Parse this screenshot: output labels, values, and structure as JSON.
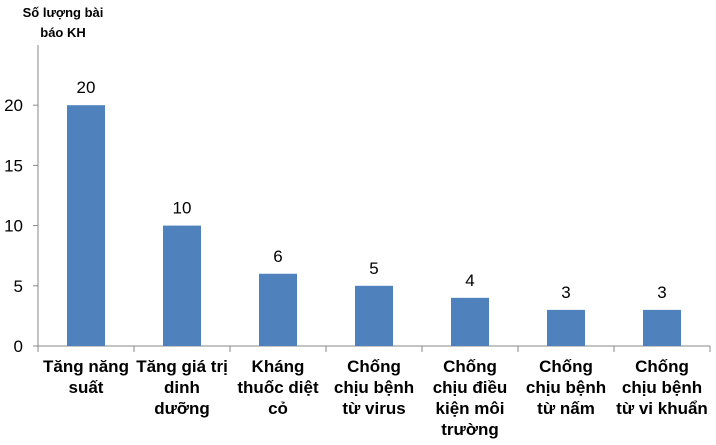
{
  "chart_data": {
    "type": "bar",
    "y_label": "Số lượng bài báo KH",
    "categories": [
      "Tăng năng suất",
      "Tăng giá trị dinh dưỡng",
      "Kháng thuốc diệt cỏ",
      "Chống chịu bệnh từ virus",
      "Chống chịu điều kiện môi trường",
      "Chống chịu bệnh từ nấm",
      "Chống chịu bệnh từ vi khuẩn"
    ],
    "values": [
      20,
      10,
      6,
      5,
      4,
      3,
      3
    ],
    "color": "#4f81bd",
    "ylim": [
      0,
      25
    ],
    "yticks": [
      0,
      5,
      10,
      15,
      20
    ],
    "grid": false
  }
}
